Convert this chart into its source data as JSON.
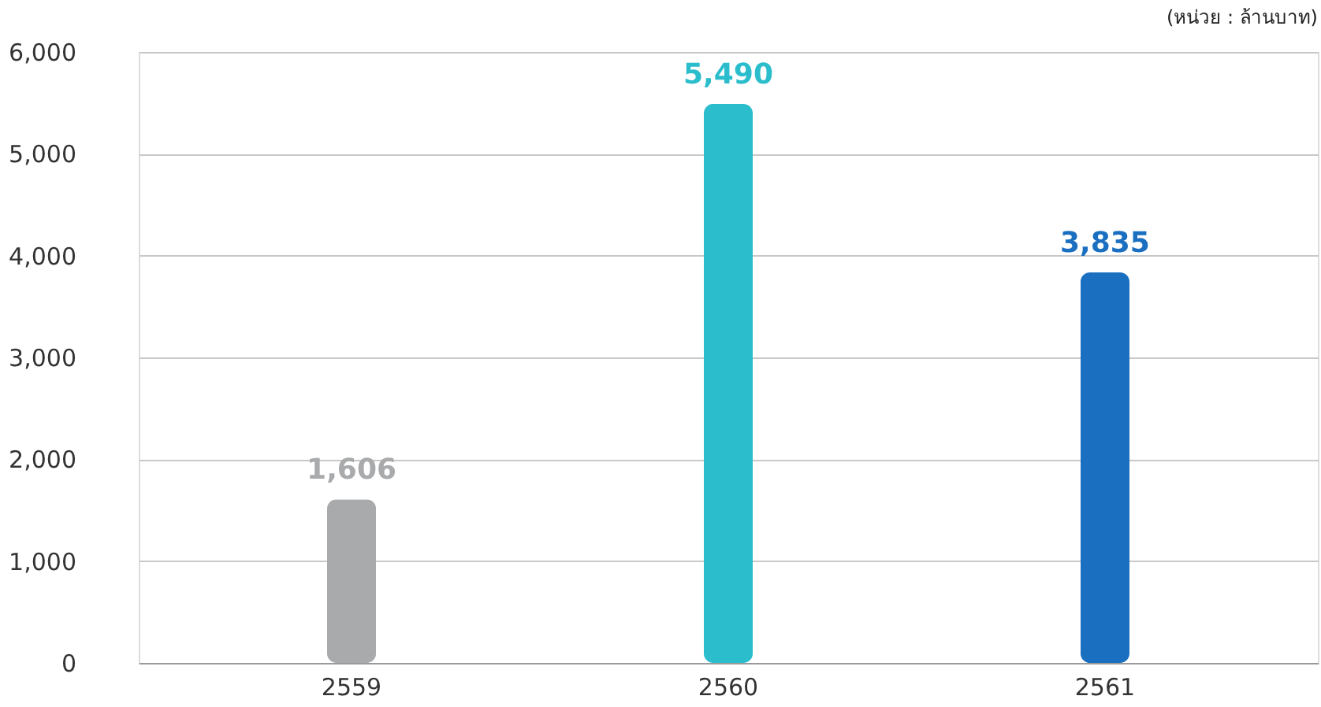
{
  "chart_data": {
    "type": "bar",
    "categories": [
      "2559",
      "2560",
      "2561"
    ],
    "values": [
      1606,
      5490,
      3835
    ],
    "colors": [
      "#a9aaac",
      "#2bbdcc",
      "#1a6fc0"
    ],
    "ylim": [
      0,
      6000
    ],
    "yticks": [
      {
        "value": 0,
        "label": "0"
      },
      {
        "value": 1000,
        "label": "1,000"
      },
      {
        "value": 2000,
        "label": "2,000"
      },
      {
        "value": 3000,
        "label": "3,000"
      },
      {
        "value": 4000,
        "label": "4,000"
      },
      {
        "value": 5000,
        "label": "5,000"
      },
      {
        "value": 6000,
        "label": "6,000"
      }
    ],
    "grid": "y",
    "value_labels": [
      "1,606",
      "5,490",
      "3,835"
    ],
    "annotations": [
      "(หน่วย : ล้านบาท)"
    ]
  }
}
